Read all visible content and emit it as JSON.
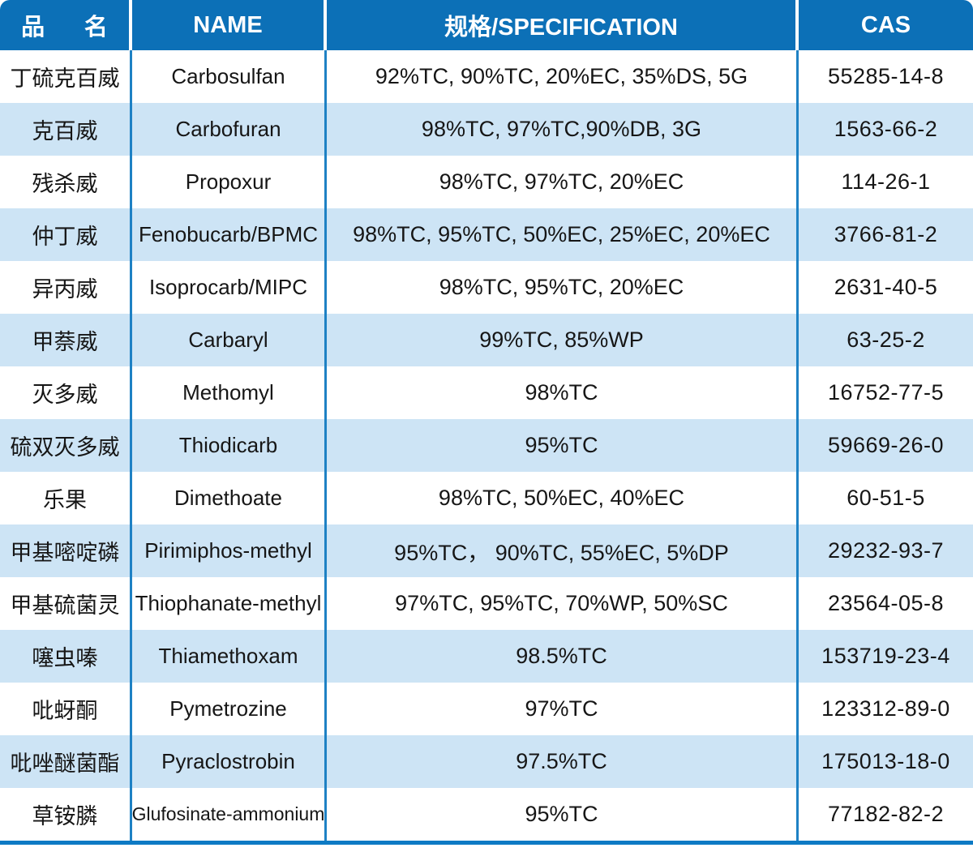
{
  "header": {
    "columns": [
      {
        "key": "cn",
        "label": "品 名"
      },
      {
        "key": "name",
        "label": "NAME"
      },
      {
        "key": "spec",
        "label": "规格/SPECIFICATION"
      },
      {
        "key": "cas",
        "label": "CAS"
      }
    ]
  },
  "rows": [
    {
      "cn": "丁硫克百威",
      "name": "Carbosulfan",
      "spec": "92%TC, 90%TC, 20%EC, 35%DS, 5G",
      "cas": "55285-14-8"
    },
    {
      "cn": "克百威",
      "name": "Carbofuran",
      "spec": "98%TC, 97%TC,90%DB, 3G",
      "cas": "1563-66-2"
    },
    {
      "cn": "残杀威",
      "name": "Propoxur",
      "spec": "98%TC, 97%TC, 20%EC",
      "cas": "114-26-1"
    },
    {
      "cn": "仲丁威",
      "name": "Fenobucarb/BPMC",
      "spec": "98%TC, 95%TC, 50%EC, 25%EC, 20%EC",
      "cas": "3766-81-2"
    },
    {
      "cn": "异丙威",
      "name": "Isoprocarb/MIPC",
      "spec": "98%TC, 95%TC, 20%EC",
      "cas": "2631-40-5"
    },
    {
      "cn": "甲萘威",
      "name": "Carbaryl",
      "spec": "99%TC, 85%WP",
      "cas": "63-25-2"
    },
    {
      "cn": "灭多威",
      "name": "Methomyl",
      "spec": "98%TC",
      "cas": "16752-77-5"
    },
    {
      "cn": "硫双灭多威",
      "name": "Thiodicarb",
      "spec": "95%TC",
      "cas": "59669-26-0"
    },
    {
      "cn": "乐果",
      "name": "Dimethoate",
      "spec": "98%TC, 50%EC, 40%EC",
      "cas": "60-51-5"
    },
    {
      "cn": "甲基嘧啶磷",
      "name": "Pirimiphos-methyl",
      "spec": "95%TC， 90%TC, 55%EC, 5%DP",
      "cas": "29232-93-7"
    },
    {
      "cn": "甲基硫菌灵",
      "name": "Thiophanate-methyl",
      "spec": "97%TC, 95%TC, 70%WP, 50%SC",
      "cas": "23564-05-8"
    },
    {
      "cn": "噻虫嗪",
      "name": "Thiamethoxam",
      "spec": "98.5%TC",
      "cas": "153719-23-4"
    },
    {
      "cn": "吡蚜酮",
      "name": "Pymetrozine",
      "spec": "97%TC",
      "cas": "123312-89-0"
    },
    {
      "cn": "吡唑醚菌酯",
      "name": "Pyraclostrobin",
      "spec": "97.5%TC",
      "cas": "175013-18-0"
    },
    {
      "cn": "草铵膦",
      "name": "Glufosinate-ammonium",
      "spec": "95%TC",
      "cas": "77182-82-2"
    }
  ],
  "colors": {
    "header_bg": "#0c70b7",
    "header_text": "#ffffff",
    "row_alt_bg": "#cde4f5",
    "row_bg": "#ffffff",
    "column_divider": "#1e81c4",
    "bottom_border": "#0d7ac4",
    "body_text": "#161616"
  }
}
